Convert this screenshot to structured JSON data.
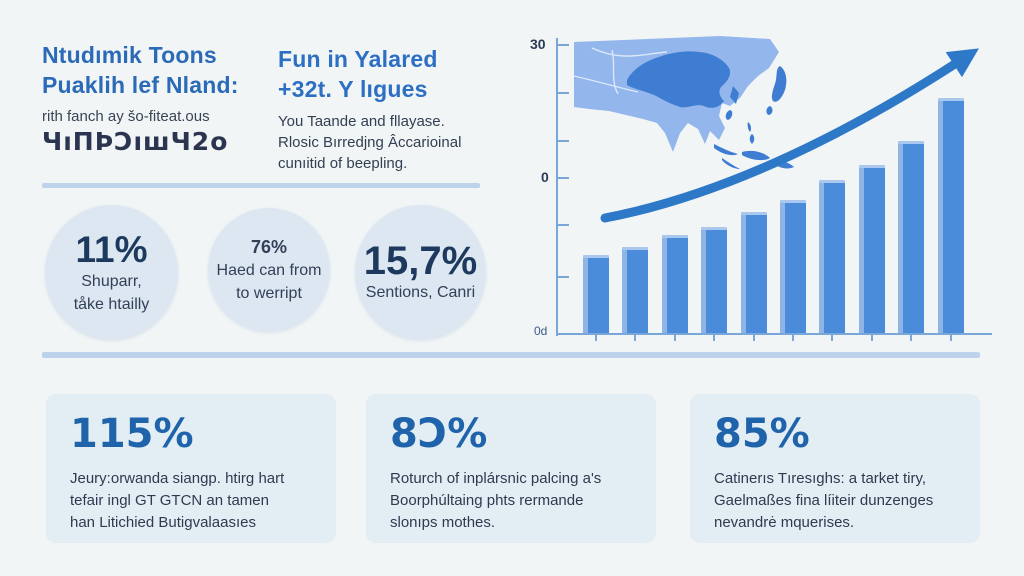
{
  "header": {
    "col1": {
      "title_line1": "Ntudımik Toons",
      "title_line2": "Puaklih lef Nland:",
      "subtitle": "rith fanch ay šo-fiteat.ous",
      "glyphs": "ЧıПÞƆıшЧ2о"
    },
    "col2": {
      "title_line1": "Fun in Yalared",
      "title_line2": "+32t. Y lıgues",
      "body_line1": "You Taande and fllayase.",
      "body_line2": "Rlosic Bırredjng Âccarioinal",
      "body_line3": "cunıitid of beepling."
    }
  },
  "stats_circles": [
    {
      "value": "11%",
      "line1": "Shuparr,",
      "line2": "tåke htailly"
    },
    {
      "value": "76%",
      "line1": "Haed can from",
      "line2": "to werript"
    },
    {
      "value": "15,7%",
      "line1": "Sentions, Canri",
      "line2": ""
    }
  ],
  "stat_boxes": [
    {
      "value": "115%",
      "line1": "Jeury:orwanda siangp. htirg hart",
      "line2": "tefair ingl GT GTCN an tamen",
      "line3": "han Litichied Butigvalaasıes"
    },
    {
      "value": "8Ɔ%",
      "line1": "Roturch of inplársnic palcing a's",
      "line2": "Boorphúltaing phts rermande",
      "line3": "slonıps mothes."
    },
    {
      "value": "85%",
      "line1": "Catinerıs Tıresıghs: a tarket tiry,",
      "line2": "Gaelmaßes fina líiteir dunzenges",
      "line3": "nevandrė mquerises."
    }
  ],
  "chart_data": {
    "type": "bar",
    "x": [
      "1",
      "2",
      "3",
      "4",
      "5",
      "6",
      "7",
      "8",
      "9",
      "10"
    ],
    "values": [
      10,
      11,
      12.5,
      13.5,
      15.5,
      17,
      19.5,
      21.5,
      24.5,
      30
    ],
    "ylim": [
      0,
      30
    ],
    "y_tick_labels": {
      "top": "30",
      "mid": "0",
      "bottom": "0d"
    },
    "title": "",
    "xlabel": "",
    "ylabel": "",
    "grid": false,
    "legend": "none",
    "annotations": [
      "asia-map highlighted China",
      "upward growth arrow"
    ],
    "bar_color": "#4a8cd9",
    "bar_edge_color": "#8fb4e6",
    "arrow_color": "#2e78c8",
    "axis_color": "#7aa7d9"
  },
  "colors": {
    "background": "#f1f5f6",
    "heading_blue": "#2a6ab6",
    "heading_blue_2": "#2d6fc2",
    "dark_navy_text": "#2b3550",
    "circle_bg": "#dde7f1",
    "box_bg": "#e3edf4",
    "stat_value_blue": "#1f63ab",
    "divider": "#bdd3ec",
    "map_land_light": "#93b6ec",
    "map_land_dark": "#3f7dd3"
  }
}
